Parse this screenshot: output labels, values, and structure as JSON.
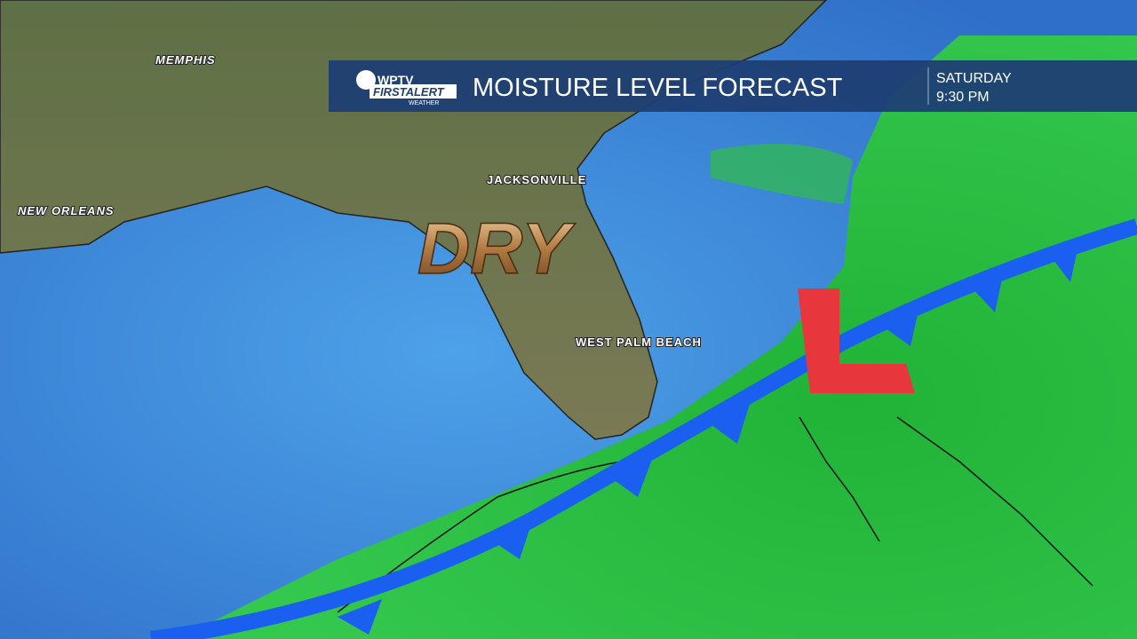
{
  "header": {
    "logo": {
      "channel": "WPTV",
      "brand": "FIRSTALERT",
      "sub": "WEATHER"
    },
    "title": "MOISTURE LEVEL FORECAST",
    "day": "SATURDAY",
    "time": "9:30 PM"
  },
  "cities": [
    "MEMPHIS",
    "JACKSONVILLE",
    "NEW ORLEANS",
    "WEST PALM BEACH"
  ],
  "labels": {
    "dry": "DRY",
    "low": "L"
  }
}
